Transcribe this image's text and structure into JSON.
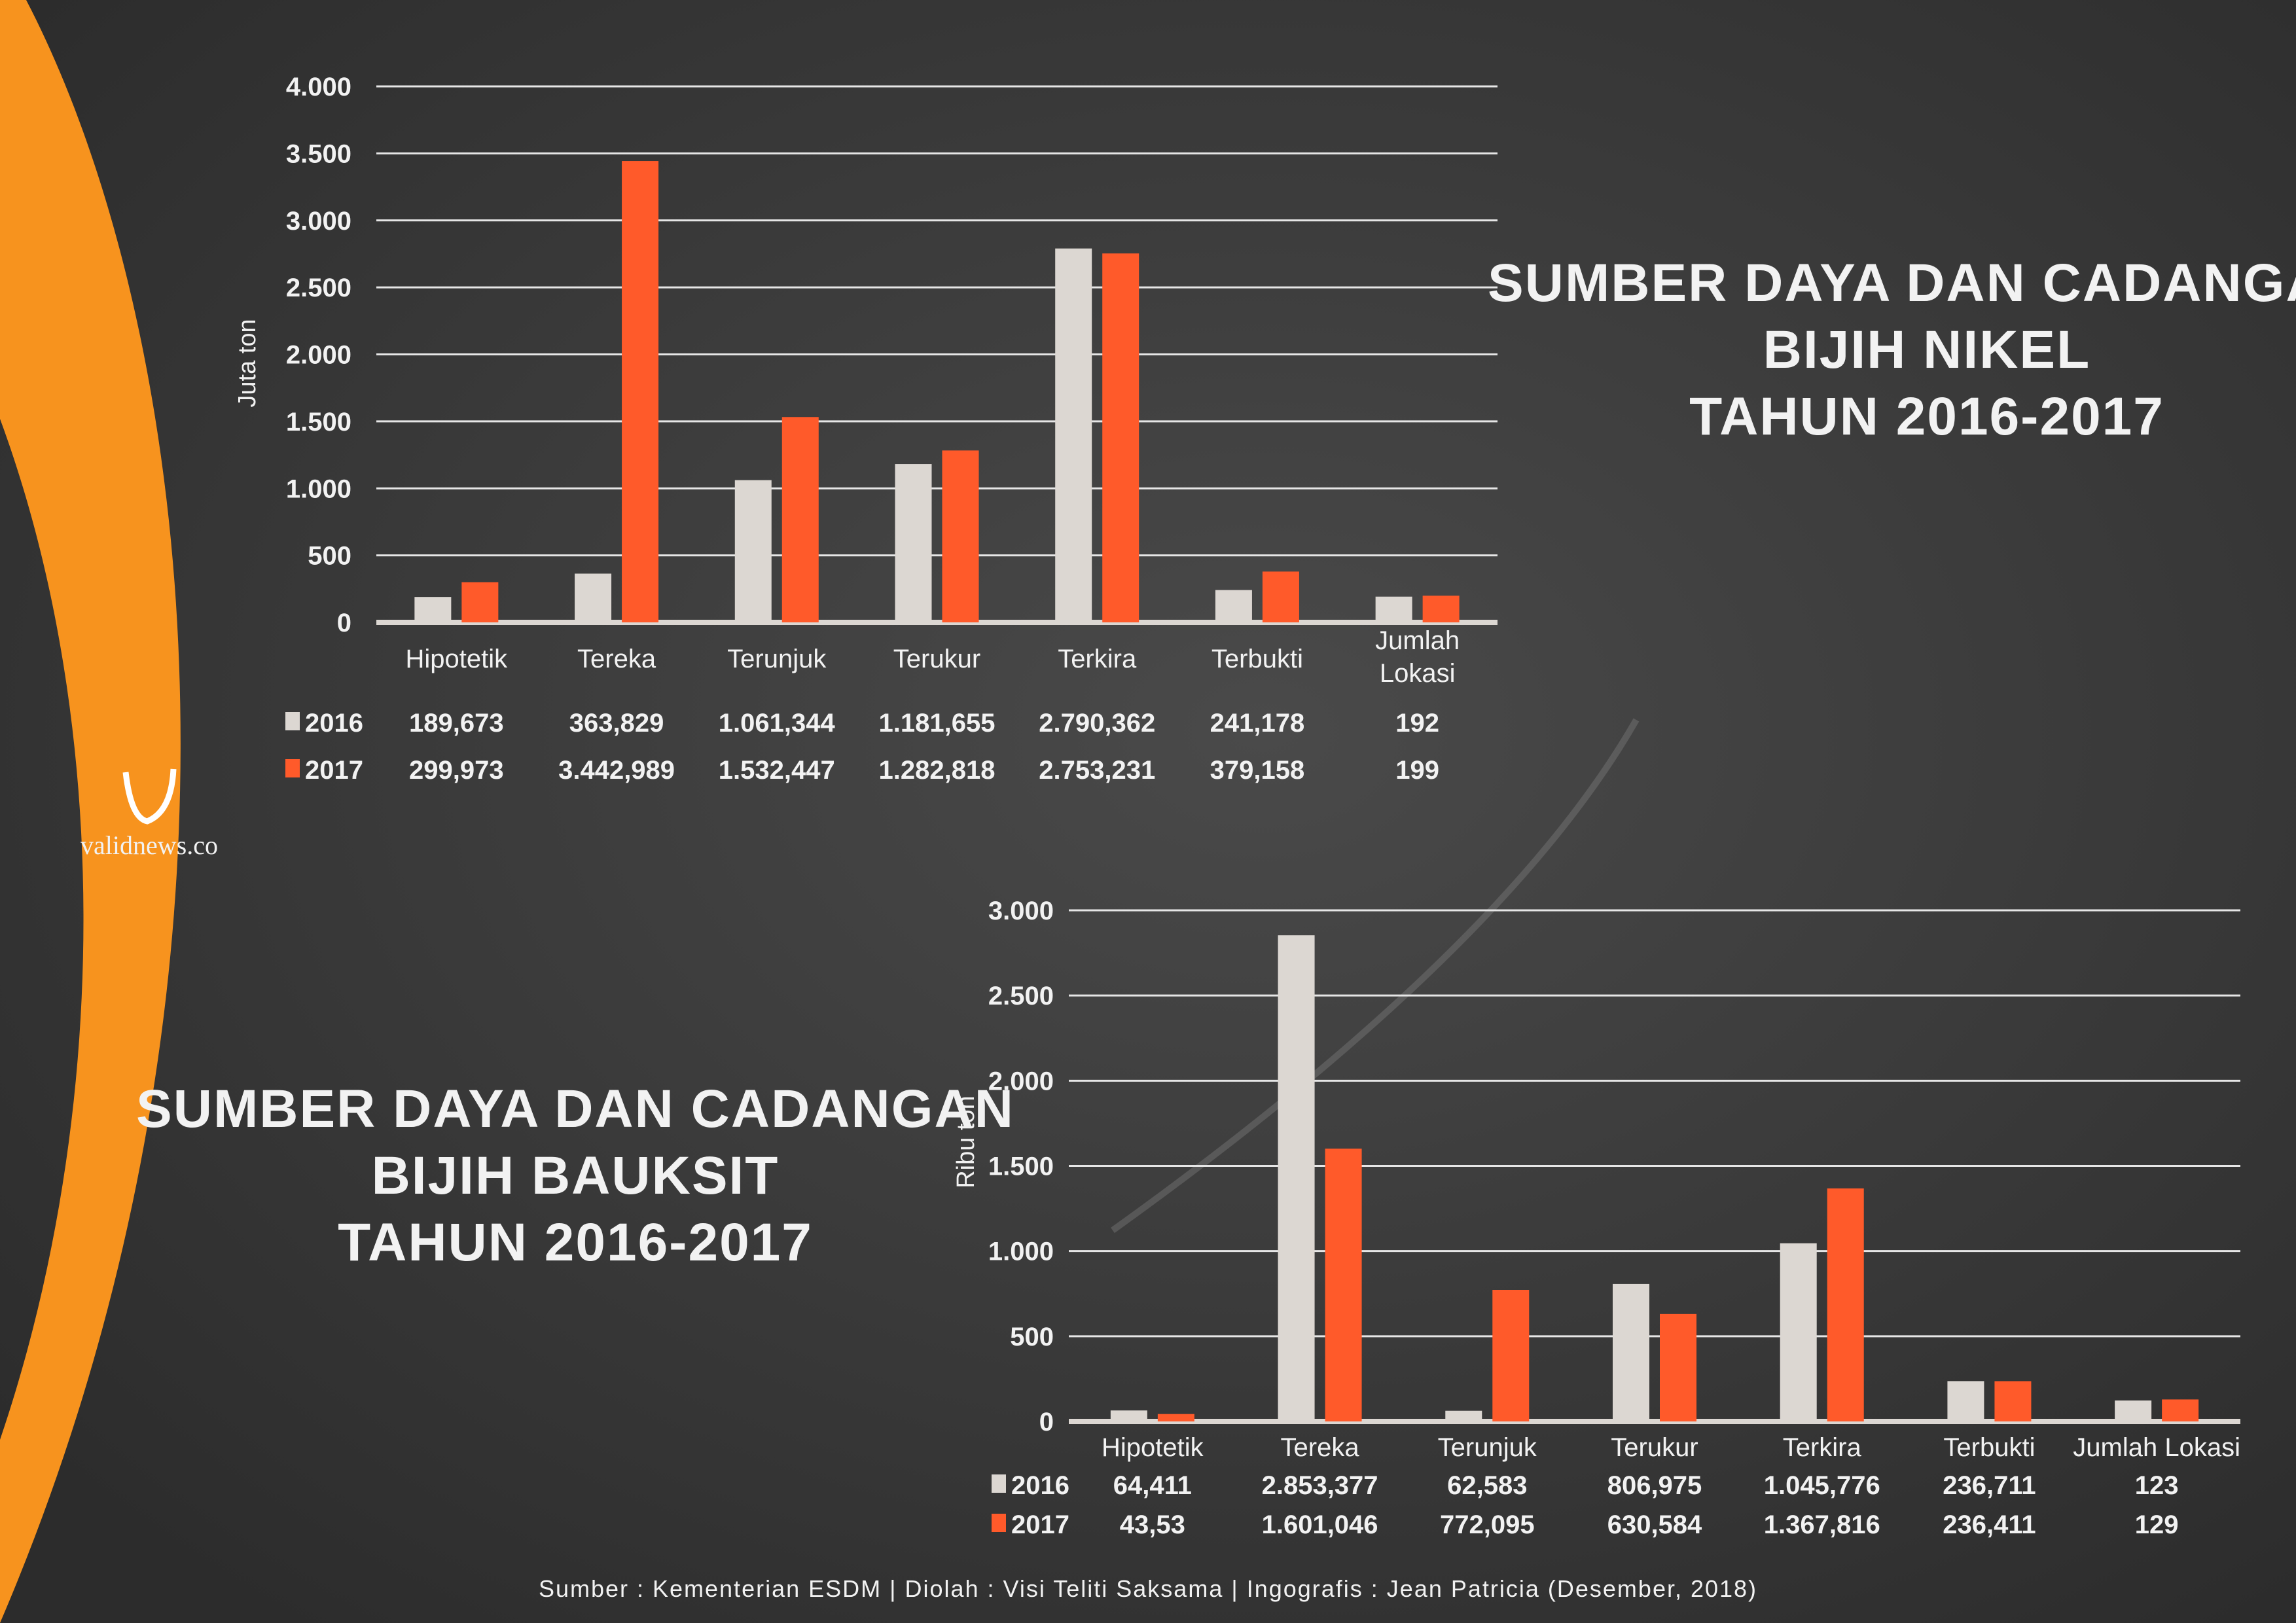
{
  "colors": {
    "background": "#3b3b3b",
    "accent_orange": "#f7931e",
    "series_2016": "#dcd7d2",
    "series_2017": "#ff5a2a",
    "grid": "#e6e6e6"
  },
  "logo": {
    "text": "validnews.co",
    "mark": "V"
  },
  "nikel_title": [
    "SUMBER DAYA DAN CADANGAN",
    "BIJIH NIKEL",
    "TAHUN 2016-2017"
  ],
  "bauksit_title": [
    "SUMBER DAYA DAN CADANGAN",
    "BIJIH BAUKSIT",
    "TAHUN 2016-2017"
  ],
  "footer": "Sumber : Kementerian ESDM | Diolah : Visi Teliti Saksama | Ingografis : Jean Patricia (Desember, 2018)",
  "chart_data": [
    {
      "type": "bar",
      "title": "Sumber Daya dan Cadangan Bijih Nikel Tahun 2016-2017",
      "ylabel": "Juta ton",
      "ylim": [
        0,
        4000
      ],
      "yticks": [
        0,
        500,
        1000,
        1500,
        2000,
        2500,
        3000,
        3500,
        4000
      ],
      "ytick_labels": [
        "0",
        "500",
        "1.000",
        "1.500",
        "2.000",
        "2.500",
        "3.000",
        "3.500",
        "4.000"
      ],
      "grid": true,
      "categories": [
        "Hipotetik",
        "Tereka",
        "Terunjuk",
        "Terukur",
        "Terkira",
        "Terbukti",
        "Jumlah Lokasi"
      ],
      "series": [
        {
          "name": "2016",
          "values": [
            189.673,
            363.829,
            1061.344,
            1181.655,
            2790.362,
            241.178,
            192
          ],
          "labels": [
            "189,673",
            "363,829",
            "1.061,344",
            "1.181,655",
            "2.790,362",
            "241,178",
            "192"
          ]
        },
        {
          "name": "2017",
          "values": [
            299.973,
            3442.989,
            1532.447,
            1282.818,
            2753.231,
            379.158,
            199
          ],
          "labels": [
            "299,973",
            "3.442,989",
            "1.532,447",
            "1.282,818",
            "2.753,231",
            "379,158",
            "199"
          ]
        }
      ]
    },
    {
      "type": "bar",
      "title": "Sumber Daya dan Cadangan Bijih Bauksit Tahun 2016-2017",
      "ylabel": "Ribu ton",
      "ylim": [
        0,
        3000
      ],
      "yticks": [
        0,
        500,
        1000,
        1500,
        2000,
        2500,
        3000
      ],
      "ytick_labels": [
        "0",
        "500",
        "1.000",
        "1.500",
        "2.000",
        "2.500",
        "3.000"
      ],
      "grid": true,
      "categories": [
        "Hipotetik",
        "Tereka",
        "Terunjuk",
        "Terukur",
        "Terkira",
        "Terbukti",
        "Jumlah Lokasi"
      ],
      "series": [
        {
          "name": "2016",
          "values": [
            64.411,
            2853.377,
            62.583,
            806.975,
            1045.776,
            236.711,
            123
          ],
          "labels": [
            "64,411",
            "2.853,377",
            "62,583",
            "806,975",
            "1.045,776",
            "236,711",
            "123"
          ]
        },
        {
          "name": "2017",
          "values": [
            43.53,
            1601.046,
            772.095,
            630.584,
            1367.816,
            236.411,
            129
          ],
          "labels": [
            "43,53",
            "1.601,046",
            "772,095",
            "630,584",
            "1.367,816",
            "236,411",
            "129"
          ]
        }
      ]
    }
  ]
}
